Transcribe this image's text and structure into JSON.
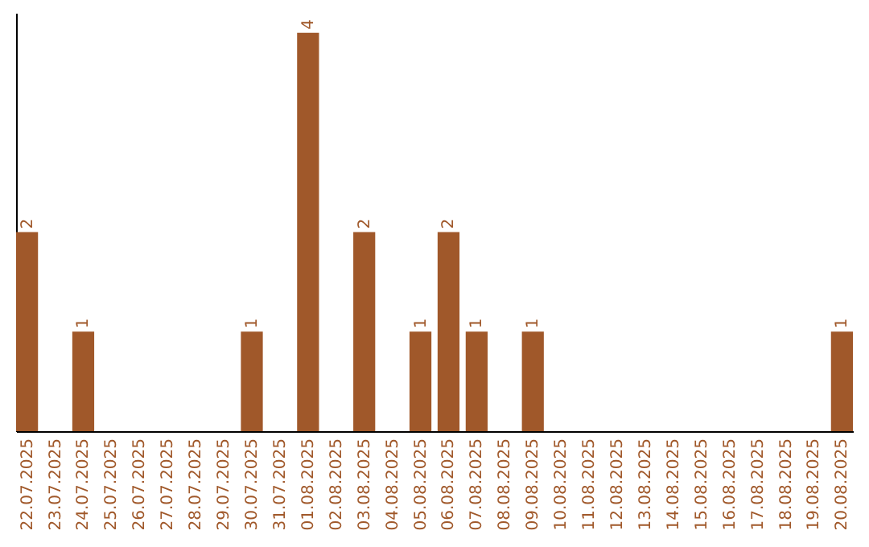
{
  "chart_data": {
    "type": "bar",
    "categories": [
      "22.07.2025",
      "23.07.2025",
      "24.07.2025",
      "25.07.2025",
      "26.07.2025",
      "27.07.2025",
      "28.07.2025",
      "29.07.2025",
      "30.07.2025",
      "31.07.2025",
      "01.08.2025",
      "02.08.2025",
      "03.08.2025",
      "04.08.2025",
      "05.08.2025",
      "06.08.2025",
      "07.08.2025",
      "08.08.2025",
      "09.08.2025",
      "10.08.2025",
      "11.08.2025",
      "12.08.2025",
      "13.08.2025",
      "14.08.2025",
      "15.08.2025",
      "16.08.2025",
      "17.08.2025",
      "18.08.2025",
      "19.08.2025",
      "20.08.2025"
    ],
    "values": [
      2,
      0,
      1,
      0,
      0,
      0,
      0,
      0,
      1,
      0,
      4,
      0,
      2,
      0,
      1,
      2,
      1,
      0,
      1,
      0,
      0,
      0,
      0,
      0,
      0,
      0,
      0,
      0,
      0,
      1
    ],
    "value_labels": [
      "2",
      null,
      "1",
      null,
      null,
      null,
      null,
      null,
      "1",
      null,
      "4",
      null,
      "2",
      null,
      "1",
      "2",
      "1",
      null,
      "1",
      null,
      null,
      null,
      null,
      null,
      null,
      null,
      null,
      null,
      null,
      "1"
    ],
    "color": "#a0582a",
    "ylim": [
      0,
      4.2
    ],
    "tick_labels": "x",
    "grid": false
  }
}
